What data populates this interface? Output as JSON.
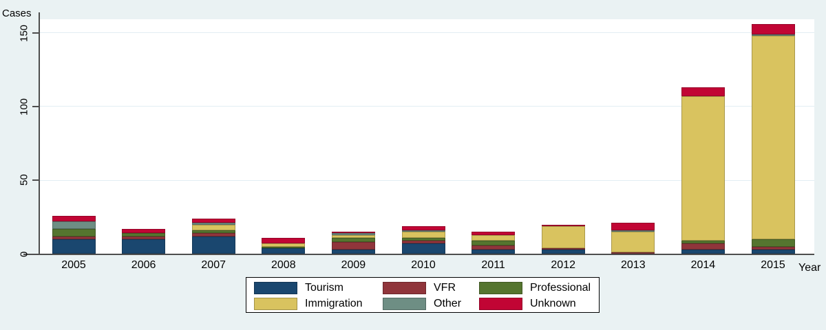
{
  "chart_data": {
    "type": "bar",
    "subtype": "stacked-vertical",
    "title": "",
    "ylabel": "Cases",
    "xlabel": "Year",
    "ylim": [
      0,
      159
    ],
    "yticks": [
      0,
      50,
      100,
      150
    ],
    "grid": true,
    "plot_background": "#FFFFFF",
    "page_background": "#EAF2F3",
    "categories": [
      "2005",
      "2006",
      "2007",
      "2008",
      "2009",
      "2010",
      "2011",
      "2012",
      "2013",
      "2014",
      "2015"
    ],
    "series": [
      {
        "name": "Tourism",
        "color": "#1A476F",
        "values": [
          10,
          10,
          12,
          4,
          3,
          7,
          3,
          3,
          0,
          3,
          3
        ]
      },
      {
        "name": "VFR",
        "color": "#90353B",
        "values": [
          2,
          2,
          2,
          0,
          5,
          2,
          3,
          1,
          1,
          4,
          2
        ]
      },
      {
        "name": "Professional",
        "color": "#55752F",
        "values": [
          5,
          2,
          2,
          1,
          3,
          2,
          3,
          0,
          0,
          2,
          5
        ]
      },
      {
        "name": "Immigration",
        "color": "#D9C35F",
        "values": [
          0,
          0,
          4,
          2,
          2,
          4,
          4,
          15,
          14,
          98,
          138
        ]
      },
      {
        "name": "Other",
        "color": "#6E8E84",
        "values": [
          5,
          0,
          1,
          0,
          1,
          1,
          0,
          0,
          1,
          0,
          1
        ]
      },
      {
        "name": "Unknown",
        "color": "#C10534",
        "values": [
          4,
          3,
          3,
          4,
          1,
          3,
          2,
          1,
          5,
          6,
          7
        ]
      }
    ],
    "totals": [
      26,
      17,
      24,
      11,
      15,
      19,
      15,
      20,
      21,
      113,
      156
    ],
    "stack_order": "bottom-to-top in series order",
    "legend": {
      "position": "bottom-center",
      "rows": 2,
      "columns": 3,
      "order": [
        "Tourism",
        "VFR",
        "Professional",
        "Immigration",
        "Other",
        "Unknown"
      ]
    }
  }
}
